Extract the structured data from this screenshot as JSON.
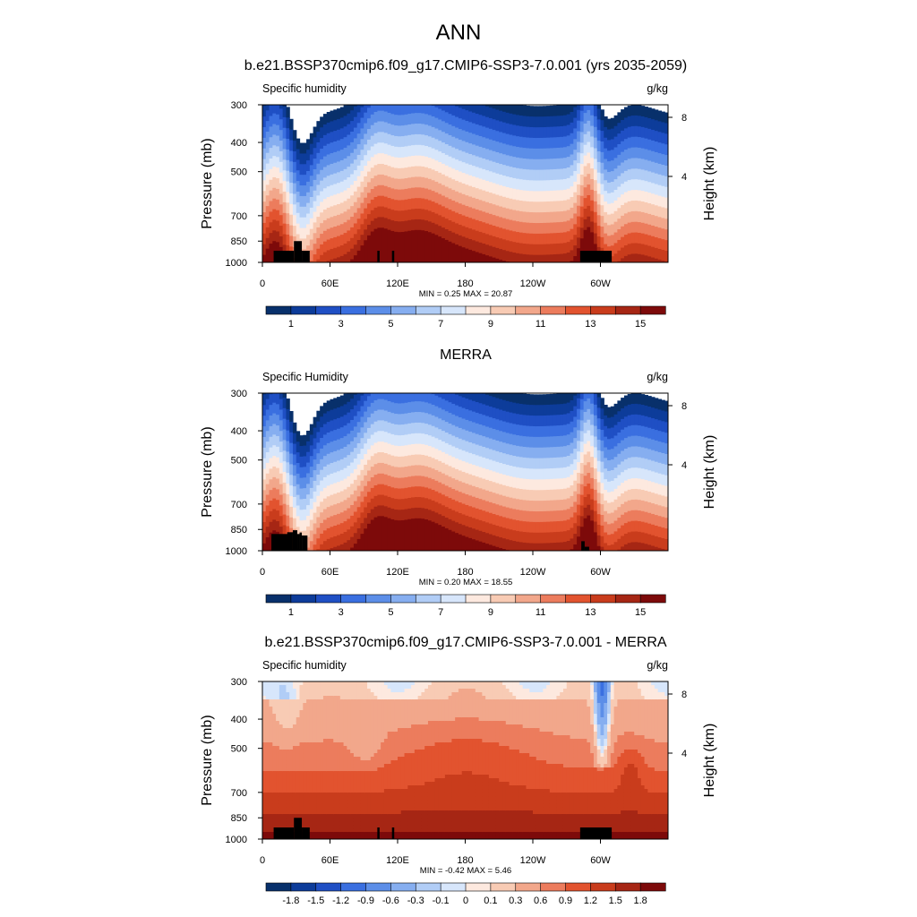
{
  "title": "ANN",
  "colors": {
    "abs_levels": [
      "#08306b",
      "#0d3c9a",
      "#1f4fc4",
      "#3a6fe0",
      "#5c8ee8",
      "#86aef0",
      "#b1cdf6",
      "#d7e6fb",
      "#fde9df",
      "#f8cbb4",
      "#f2a78b",
      "#ec7c5d",
      "#e2532f",
      "#c93c1c",
      "#a62614",
      "#7d0a0a"
    ],
    "diff_levels": [
      "#08306b",
      "#0d3c9a",
      "#1f4fc4",
      "#3a6fe0",
      "#5c8ee8",
      "#86aef0",
      "#b1cdf6",
      "#d7e6fb",
      "#fde9df",
      "#f8cbb4",
      "#f2a78b",
      "#ec7c5d",
      "#e2532f",
      "#c93c1c",
      "#a62614",
      "#7d0a0a"
    ],
    "topo": "#000000"
  },
  "chart_data": [
    {
      "type": "contour",
      "title": "b.e21.BSSP370cmip6.f09_g17.CMIP6-SSP3-7.0.001 (yrs 2035-2059)",
      "left_label": "Specific humidity",
      "right_label": "g/kg",
      "xlabel": "",
      "ylabel": "Pressure (mb)",
      "ylabel_right": "Height (km)",
      "x_ticks": [
        "0",
        "60E",
        "120E",
        "180",
        "120W",
        "60W"
      ],
      "y_ticks": [
        "300",
        "400",
        "500",
        "700",
        "850",
        "1000"
      ],
      "y_ticks_right": [
        "8",
        "4"
      ],
      "stats": "MIN =   0.25  MAX =  20.87",
      "colorbar_labels": [
        "1",
        "3",
        "5",
        "7",
        "9",
        "11",
        "13",
        "15"
      ],
      "field": "abs",
      "terrain": "model"
    },
    {
      "type": "contour",
      "title": "MERRA",
      "left_label": "Specific Humidity",
      "right_label": "g/kg",
      "xlabel": "",
      "ylabel": "Pressure (mb)",
      "ylabel_right": "Height (km)",
      "x_ticks": [
        "0",
        "60E",
        "120E",
        "180",
        "120W",
        "60W"
      ],
      "y_ticks": [
        "300",
        "400",
        "500",
        "700",
        "850",
        "1000"
      ],
      "y_ticks_right": [
        "8",
        "4"
      ],
      "stats": "MIN =   0.20  MAX =  18.55",
      "colorbar_labels": [
        "1",
        "3",
        "5",
        "7",
        "9",
        "11",
        "13",
        "15"
      ],
      "field": "abs",
      "terrain": "obs"
    },
    {
      "type": "contour",
      "title": "b.e21.BSSP370cmip6.f09_g17.CMIP6-SSP3-7.0.001 - MERRA",
      "left_label": "Specific humidity",
      "right_label": "g/kg",
      "xlabel": "",
      "ylabel": "Pressure (mb)",
      "ylabel_right": "Height (km)",
      "x_ticks": [
        "0",
        "60E",
        "120E",
        "180",
        "120W",
        "60W"
      ],
      "y_ticks": [
        "300",
        "400",
        "500",
        "700",
        "850",
        "1000"
      ],
      "y_ticks_right": [
        "8",
        "4"
      ],
      "stats": "MIN =  -0.42  MAX =   5.46",
      "colorbar_labels": [
        "-1.8",
        "-1.5",
        "-1.2",
        "-0.9",
        "-0.6",
        "-0.3",
        "-0.1",
        "0",
        "0.1",
        "0.3",
        "0.6",
        "0.9",
        "1.2",
        "1.5",
        "1.8"
      ],
      "field": "diff",
      "terrain": "model"
    }
  ]
}
